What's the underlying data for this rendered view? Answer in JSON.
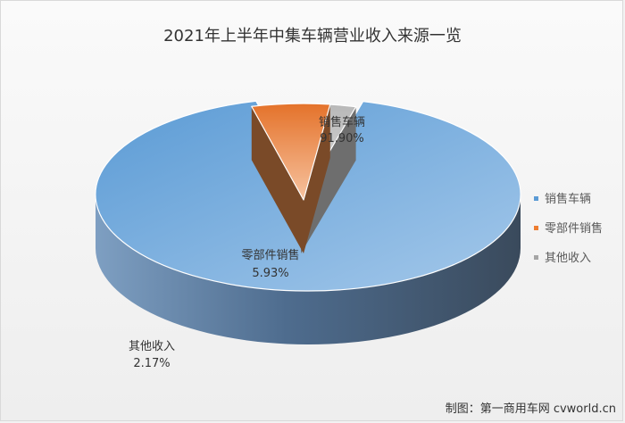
{
  "chart_data": {
    "type": "pie",
    "title": "2021年上半年中集车辆营业收入来源一览",
    "categories": [
      "销售车辆",
      "零部件销售",
      "其他收入"
    ],
    "values": [
      91.9,
      5.93,
      2.17
    ],
    "value_labels": [
      "91.90%",
      "5.93%",
      "2.17%"
    ],
    "colors": [
      "#5b9bd5",
      "#ed7d31",
      "#a5a5a5"
    ],
    "legend_position": "right",
    "style": "3d-exploded"
  },
  "source": "制图：第一商用车网 cvworld.cn"
}
